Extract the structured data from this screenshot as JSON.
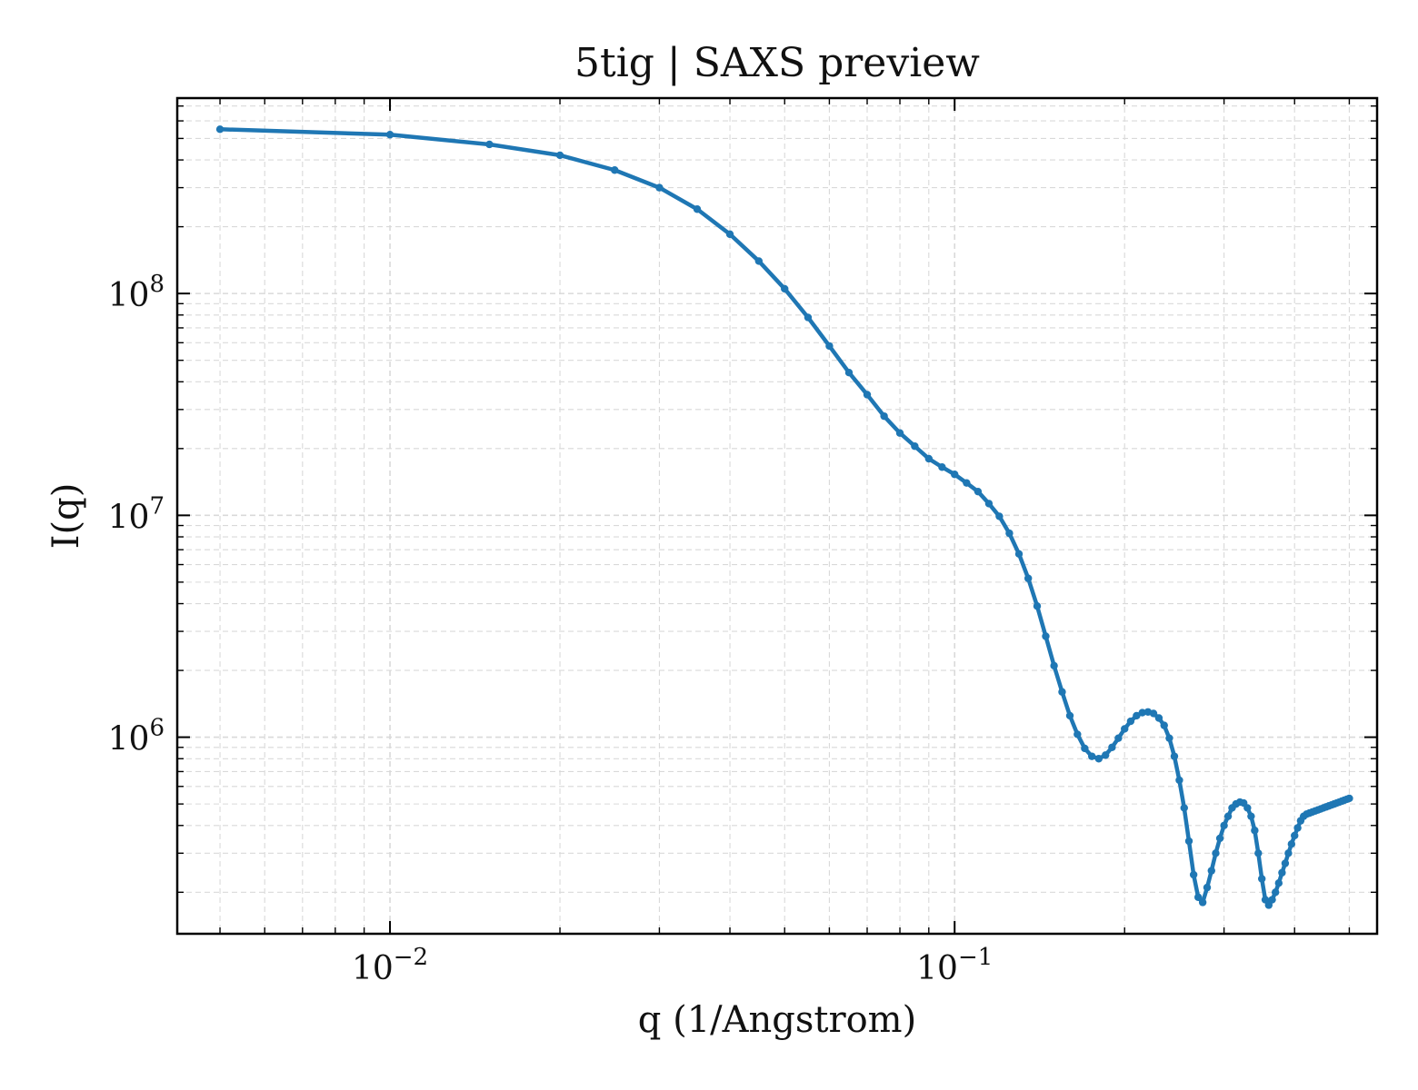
{
  "chart_data": {
    "type": "line",
    "title": "5tig | SAXS preview",
    "xlabel": "q (1/Angstrom)",
    "ylabel": "I(q)",
    "xscale": "log",
    "yscale": "log",
    "xlim": [
      0.0042,
      0.56
    ],
    "ylim": [
      130000,
      760000000
    ],
    "x_ticks": [
      {
        "value": 0.01,
        "base": "10",
        "exp": "−2"
      },
      {
        "value": 0.1,
        "base": "10",
        "exp": "−1"
      }
    ],
    "y_ticks": [
      {
        "value": 1000000,
        "base": "10",
        "exp": "6"
      },
      {
        "value": 10000000,
        "base": "10",
        "exp": "7"
      },
      {
        "value": 100000000,
        "base": "10",
        "exp": "8"
      }
    ],
    "grid": true,
    "grid_style": "dashed, major and minor",
    "ticks_direction": "in",
    "colors": {
      "series": "#1f77b4",
      "axes": "#000000",
      "grid": "#d9d9d9",
      "background": "#ffffff"
    },
    "series": [
      {
        "marker": "circle",
        "x": [
          0.005,
          0.01,
          0.015,
          0.02,
          0.025,
          0.03,
          0.035,
          0.04,
          0.045,
          0.05,
          0.055,
          0.06,
          0.065,
          0.07,
          0.075,
          0.08,
          0.085,
          0.09,
          0.095,
          0.1,
          0.105,
          0.11,
          0.115,
          0.12,
          0.125,
          0.13,
          0.135,
          0.14,
          0.145,
          0.15,
          0.155,
          0.16,
          0.165,
          0.17,
          0.175,
          0.18,
          0.185,
          0.19,
          0.195,
          0.2,
          0.205,
          0.21,
          0.215,
          0.22,
          0.225,
          0.23,
          0.235,
          0.24,
          0.245,
          0.25,
          0.255,
          0.26,
          0.265,
          0.27,
          0.275,
          0.28,
          0.285,
          0.29,
          0.295,
          0.3,
          0.305,
          0.31,
          0.315,
          0.32,
          0.325,
          0.33,
          0.335,
          0.34,
          0.345,
          0.35,
          0.355,
          0.36,
          0.365,
          0.37,
          0.375,
          0.38,
          0.385,
          0.39,
          0.395,
          0.4,
          0.405,
          0.41,
          0.415,
          0.42,
          0.425,
          0.43,
          0.435,
          0.44,
          0.445,
          0.45,
          0.455,
          0.46,
          0.465,
          0.47,
          0.475,
          0.48,
          0.485,
          0.49,
          0.495,
          0.5
        ],
        "y": [
          550000000,
          520000000,
          470000000,
          420000000,
          360000000,
          300000000,
          240000000,
          185000000,
          140000000,
          105000000,
          78000000,
          58000000,
          44000000,
          35000000,
          28000000,
          23500000,
          20500000,
          18000000,
          16500000,
          15300000,
          14000000,
          12800000,
          11300000,
          9900000,
          8300000,
          6700000,
          5200000,
          3900000,
          2850000,
          2100000,
          1600000,
          1250000,
          1030000,
          890000,
          820000,
          800000,
          830000,
          900000,
          990000,
          1090000,
          1180000,
          1250000,
          1290000,
          1300000,
          1280000,
          1220000,
          1130000,
          990000,
          820000,
          640000,
          480000,
          340000,
          240000,
          190000,
          180000,
          210000,
          250000,
          300000,
          350000,
          400000,
          440000,
          480000,
          500000,
          510000,
          505000,
          480000,
          440000,
          380000,
          300000,
          230000,
          185000,
          175000,
          185000,
          200000,
          220000,
          245000,
          270000,
          300000,
          330000,
          360000,
          390000,
          420000,
          440000,
          450000,
          455000,
          460000,
          465000,
          470000,
          475000,
          480000,
          485000,
          490000,
          495000,
          500000,
          505000,
          510000,
          515000,
          520000,
          525000,
          530000
        ]
      }
    ]
  }
}
